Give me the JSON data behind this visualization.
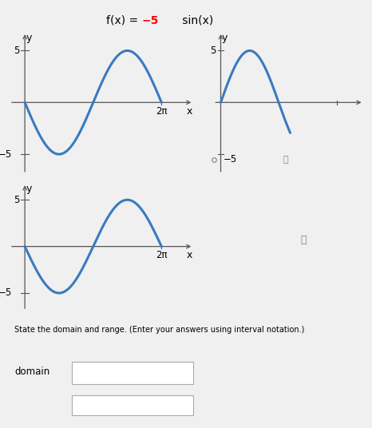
{
  "title": "f(x) = −5 sin(x)",
  "title_black": "f(x) = ",
  "title_red": "−5",
  "title_end": " sin(x)",
  "background_color": "#f0f0f0",
  "curve_color": "#3a7abf",
  "curve_linewidth": 2.2,
  "amplitude": -5,
  "two_pi": 6.2832,
  "xlim_main": [
    -0.5,
    7.5
  ],
  "ylim_main": [
    -6.5,
    6.5
  ],
  "x_label": "x",
  "y_label": "y",
  "x_tick_label": "2π",
  "y_tick_top": "5",
  "y_tick_bottom": "−5",
  "domain_label": "domain",
  "state_text": "State the domain and range. (Enter your answers using interval notation.)",
  "font_size_title": 10,
  "font_size_label": 9,
  "font_size_tick": 8.5,
  "axis_color": "#555555",
  "radio_label": "−5"
}
